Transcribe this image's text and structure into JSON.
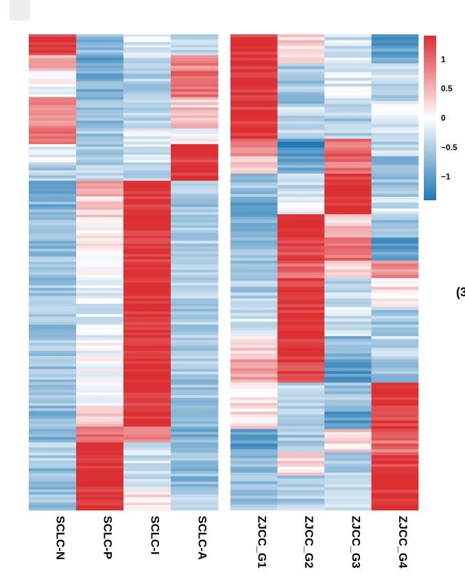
{
  "chart_data": {
    "type": "heatmap",
    "title": "",
    "panels": [
      {
        "name": "left",
        "columns": [
          "SCLC-N",
          "SCLC-P",
          "SCLC-I",
          "SCLC-A"
        ],
        "row_segments": [
          {
            "rows": 8,
            "values": [
              1.4,
              -0.7,
              -0.2,
              -0.4
            ]
          },
          {
            "rows": 6,
            "values": [
              0.6,
              -0.9,
              -0.4,
              0.8
            ]
          },
          {
            "rows": 10,
            "values": [
              0.0,
              -0.8,
              -0.5,
              1.0
            ]
          },
          {
            "rows": 12,
            "values": [
              0.8,
              -0.7,
              -0.4,
              0.4
            ]
          },
          {
            "rows": 6,
            "values": [
              0.9,
              -0.6,
              -0.1,
              0.0
            ]
          },
          {
            "rows": 8,
            "values": [
              -0.2,
              -0.6,
              -0.3,
              1.4
            ]
          },
          {
            "rows": 6,
            "values": [
              -0.5,
              -0.4,
              -0.4,
              1.4
            ]
          },
          {
            "rows": 6,
            "values": [
              -0.9,
              0.6,
              1.4,
              -0.6
            ]
          },
          {
            "rows": 8,
            "values": [
              -0.8,
              0.3,
              1.4,
              -0.6
            ]
          },
          {
            "rows": 14,
            "values": [
              -0.7,
              0.1,
              1.4,
              -0.5
            ]
          },
          {
            "rows": 18,
            "values": [
              -0.6,
              -0.1,
              1.4,
              -0.5
            ]
          },
          {
            "rows": 14,
            "values": [
              -0.6,
              -0.2,
              1.4,
              -0.5
            ]
          },
          {
            "rows": 16,
            "values": [
              -0.6,
              -0.05,
              1.4,
              -0.5
            ]
          },
          {
            "rows": 10,
            "values": [
              -0.6,
              0.0,
              1.4,
              -0.6
            ]
          },
          {
            "rows": 8,
            "values": [
              -0.7,
              0.4,
              1.3,
              -0.7
            ]
          },
          {
            "rows": 6,
            "values": [
              -0.8,
              0.9,
              0.9,
              -0.8
            ]
          },
          {
            "rows": 8,
            "values": [
              -0.5,
              1.4,
              -0.3,
              -0.6
            ]
          },
          {
            "rows": 10,
            "values": [
              -0.7,
              1.4,
              -0.4,
              -0.7
            ]
          },
          {
            "rows": 8,
            "values": [
              -0.6,
              1.4,
              0.2,
              -0.5
            ]
          }
        ]
      },
      {
        "name": "right",
        "columns": [
          "ZJCC_G1",
          "ZJCC_G2",
          "ZJCC_G3",
          "ZJCC_G4"
        ],
        "row_segments": [
          {
            "rows": 10,
            "values": [
              1.4,
              0.3,
              -0.3,
              -1.0
            ]
          },
          {
            "rows": 14,
            "values": [
              1.4,
              -0.6,
              -0.2,
              -0.4
            ]
          },
          {
            "rows": 12,
            "values": [
              1.4,
              -0.4,
              -0.5,
              -0.2
            ]
          },
          {
            "rows": 6,
            "values": [
              0.8,
              -1.2,
              1.0,
              -0.4
            ]
          },
          {
            "rows": 6,
            "values": [
              0.4,
              -0.9,
              0.9,
              -0.8
            ]
          },
          {
            "rows": 8,
            "values": [
              -0.6,
              -0.4,
              1.4,
              -0.6
            ]
          },
          {
            "rows": 6,
            "values": [
              -0.9,
              -0.1,
              1.4,
              -0.3
            ]
          },
          {
            "rows": 8,
            "values": [
              -0.8,
              1.4,
              0.4,
              -0.7
            ]
          },
          {
            "rows": 8,
            "values": [
              -0.7,
              1.3,
              0.9,
              -1.0
            ]
          },
          {
            "rows": 6,
            "values": [
              -0.6,
              1.0,
              0.2,
              0.8
            ]
          },
          {
            "rows": 10,
            "values": [
              -0.5,
              1.4,
              -0.4,
              0.2
            ]
          },
          {
            "rows": 10,
            "values": [
              -0.3,
              1.4,
              -0.3,
              -0.6
            ]
          },
          {
            "rows": 8,
            "values": [
              0.3,
              1.4,
              -0.7,
              -0.4
            ]
          },
          {
            "rows": 8,
            "values": [
              0.6,
              1.3,
              -1.1,
              -0.6
            ]
          },
          {
            "rows": 10,
            "values": [
              0.2,
              -0.4,
              -0.6,
              1.4
            ]
          },
          {
            "rows": 6,
            "values": [
              0.3,
              -0.4,
              -1.1,
              1.3
            ]
          },
          {
            "rows": 8,
            "values": [
              -1.0,
              -0.6,
              0.3,
              1.0
            ]
          },
          {
            "rows": 8,
            "values": [
              -0.7,
              0.2,
              -0.5,
              1.3
            ]
          },
          {
            "rows": 12,
            "values": [
              -0.6,
              -0.5,
              -0.4,
              1.4
            ]
          }
        ]
      }
    ],
    "color_scale": {
      "min": -1.4,
      "max": 1.4,
      "low_color": "#1f77b4",
      "mid_color": "#ffffff",
      "high_color": "#dc2f32"
    },
    "legend": {
      "ticks": [
        {
          "value": 1,
          "label": "1"
        },
        {
          "value": 0.5,
          "label": "0.5"
        },
        {
          "value": 0,
          "label": "0"
        },
        {
          "value": -0.5,
          "label": "−0.5"
        },
        {
          "value": -1,
          "label": "−1"
        }
      ]
    }
  },
  "edge_text": "(3"
}
